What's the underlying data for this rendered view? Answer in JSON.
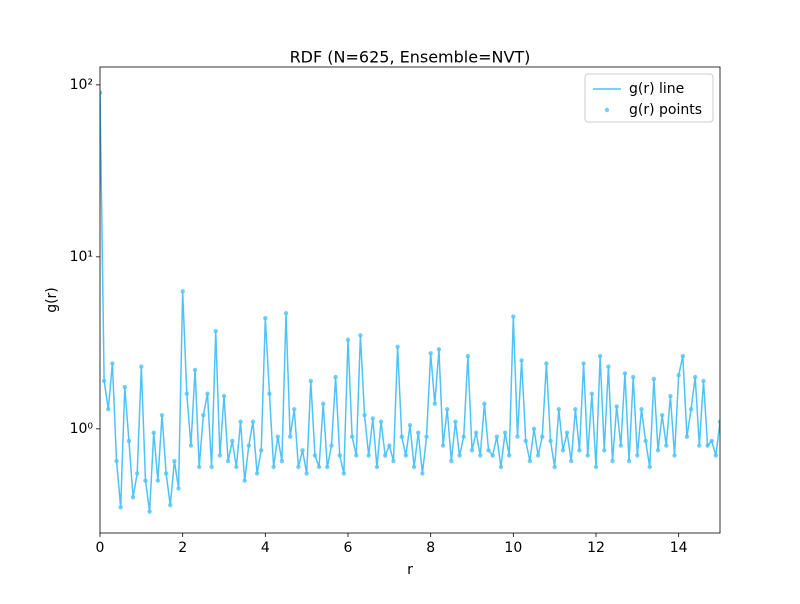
{
  "chart_data": {
    "type": "line",
    "title": "RDF (N=625, Ensemble=NVT)",
    "x_label": "r",
    "y_label": "g(r)",
    "x": [
      0,
      0.1,
      0.2,
      0.3,
      0.4,
      0.5,
      0.6,
      0.7,
      0.8,
      0.9,
      1,
      1.1,
      1.2,
      1.3,
      1.4,
      1.5,
      1.6,
      1.7,
      1.8,
      1.9,
      2,
      2.1,
      2.2,
      2.3,
      2.4,
      2.5,
      2.6,
      2.7,
      2.8,
      2.9,
      3,
      3.1,
      3.2,
      3.3,
      3.4,
      3.5,
      3.6,
      3.7,
      3.8,
      3.9,
      4,
      4.1,
      4.2,
      4.3,
      4.4,
      4.5,
      4.6,
      4.7,
      4.8,
      4.9,
      5,
      5.1,
      5.2,
      5.3,
      5.4,
      5.5,
      5.6,
      5.7,
      5.8,
      5.9,
      6,
      6.1,
      6.2,
      6.3,
      6.4,
      6.5,
      6.6,
      6.7,
      6.8,
      6.9,
      7,
      7.1,
      7.2,
      7.3,
      7.4,
      7.5,
      7.6,
      7.7,
      7.8,
      7.9,
      8,
      8.1,
      8.2,
      8.3,
      8.4,
      8.5,
      8.6,
      8.7,
      8.8,
      8.9,
      9,
      9.1,
      9.2,
      9.3,
      9.4,
      9.5,
      9.6,
      9.7,
      9.8,
      9.9,
      10,
      10.1,
      10.2,
      10.3,
      10.4,
      10.5,
      10.6,
      10.7,
      10.8,
      10.9,
      11,
      11.1,
      11.2,
      11.3,
      11.4,
      11.5,
      11.6,
      11.7,
      11.8,
      11.9,
      12,
      12.1,
      12.2,
      12.3,
      12.4,
      12.5,
      12.6,
      12.7,
      12.8,
      12.9,
      13,
      13.1,
      13.2,
      13.3,
      13.4,
      13.5,
      13.6,
      13.7,
      13.8,
      13.9,
      14,
      14.1,
      14.2,
      14.3,
      14.4,
      14.5,
      14.6,
      14.7,
      14.8,
      14.9,
      15
    ],
    "series": [
      {
        "name": "g(r) line",
        "color": "#4fc3f7",
        "values": [
          90,
          1.9,
          1.3,
          2.4,
          0.65,
          0.35,
          1.75,
          0.85,
          0.4,
          0.55,
          2.3,
          0.5,
          0.33,
          0.95,
          0.5,
          1.2,
          0.55,
          0.36,
          0.65,
          0.45,
          6.3,
          1.6,
          0.8,
          2.2,
          0.6,
          1.2,
          1.6,
          0.6,
          3.7,
          0.7,
          1.55,
          0.65,
          0.85,
          0.6,
          1.1,
          0.5,
          0.8,
          1.1,
          0.55,
          0.75,
          4.4,
          1.6,
          0.6,
          0.9,
          0.65,
          4.7,
          0.9,
          1.3,
          0.6,
          0.75,
          0.55,
          1.9,
          0.7,
          0.6,
          1.4,
          0.6,
          0.8,
          2.0,
          0.7,
          0.55,
          3.3,
          0.9,
          0.7,
          3.5,
          1.2,
          0.7,
          1.15,
          0.6,
          1.1,
          0.7,
          0.8,
          0.65,
          3.0,
          0.9,
          0.7,
          1.05,
          0.6,
          0.95,
          0.55,
          0.9,
          2.75,
          1.4,
          2.9,
          0.8,
          1.3,
          0.65,
          1.1,
          0.7,
          0.9,
          2.65,
          0.75,
          0.95,
          0.7,
          1.4,
          0.75,
          0.7,
          0.9,
          0.6,
          0.95,
          0.7,
          4.5,
          0.9,
          2.5,
          0.85,
          0.65,
          1.0,
          0.7,
          0.9,
          2.4,
          0.85,
          0.6,
          1.3,
          0.75,
          0.95,
          0.65,
          1.3,
          0.75,
          2.4,
          0.7,
          1.6,
          0.6,
          2.65,
          0.75,
          2.3,
          0.65,
          1.35,
          0.8,
          2.1,
          0.65,
          2.0,
          0.7,
          1.3,
          0.85,
          0.6,
          1.95,
          0.75,
          1.2,
          0.8,
          1.55,
          0.7,
          2.05,
          2.65,
          0.9,
          1.3,
          2.0,
          0.8,
          1.9,
          0.8,
          0.85,
          0.7,
          1.1
        ]
      },
      {
        "name": "g(r) points",
        "color": "#4fc3f7",
        "values": [
          90,
          1.9,
          1.3,
          2.4,
          0.65,
          0.35,
          1.75,
          0.85,
          0.4,
          0.55,
          2.3,
          0.5,
          0.33,
          0.95,
          0.5,
          1.2,
          0.55,
          0.36,
          0.65,
          0.45,
          6.3,
          1.6,
          0.8,
          2.2,
          0.6,
          1.2,
          1.6,
          0.6,
          3.7,
          0.7,
          1.55,
          0.65,
          0.85,
          0.6,
          1.1,
          0.5,
          0.8,
          1.1,
          0.55,
          0.75,
          4.4,
          1.6,
          0.6,
          0.9,
          0.65,
          4.7,
          0.9,
          1.3,
          0.6,
          0.75,
          0.55,
          1.9,
          0.7,
          0.6,
          1.4,
          0.6,
          0.8,
          2.0,
          0.7,
          0.55,
          3.3,
          0.9,
          0.7,
          3.5,
          1.2,
          0.7,
          1.15,
          0.6,
          1.1,
          0.7,
          0.8,
          0.65,
          3.0,
          0.9,
          0.7,
          1.05,
          0.6,
          0.95,
          0.55,
          0.9,
          2.75,
          1.4,
          2.9,
          0.8,
          1.3,
          0.65,
          1.1,
          0.7,
          0.9,
          2.65,
          0.75,
          0.95,
          0.7,
          1.4,
          0.75,
          0.7,
          0.9,
          0.6,
          0.95,
          0.7,
          4.5,
          0.9,
          2.5,
          0.85,
          0.65,
          1.0,
          0.7,
          0.9,
          2.4,
          0.85,
          0.6,
          1.3,
          0.75,
          0.95,
          0.65,
          1.3,
          0.75,
          2.4,
          0.7,
          1.6,
          0.6,
          2.65,
          0.75,
          2.3,
          0.65,
          1.35,
          0.8,
          2.1,
          0.65,
          2.0,
          0.7,
          1.3,
          0.85,
          0.6,
          1.95,
          0.75,
          1.2,
          0.8,
          1.55,
          0.7,
          2.05,
          2.65,
          0.9,
          1.3,
          2.0,
          0.8,
          1.9,
          0.8,
          0.85,
          0.7,
          1.1
        ]
      }
    ],
    "xlim": [
      0,
      15
    ],
    "xticks": [
      0,
      2,
      4,
      6,
      8,
      10,
      12,
      14
    ],
    "ylim": [
      0.248,
      127
    ],
    "y_scale": "log",
    "yticks": [
      {
        "value": 1,
        "label": "10⁰"
      },
      {
        "value": 10,
        "label": "10¹"
      },
      {
        "value": 100,
        "label": "10²"
      }
    ],
    "legend_loc": "upper right"
  }
}
